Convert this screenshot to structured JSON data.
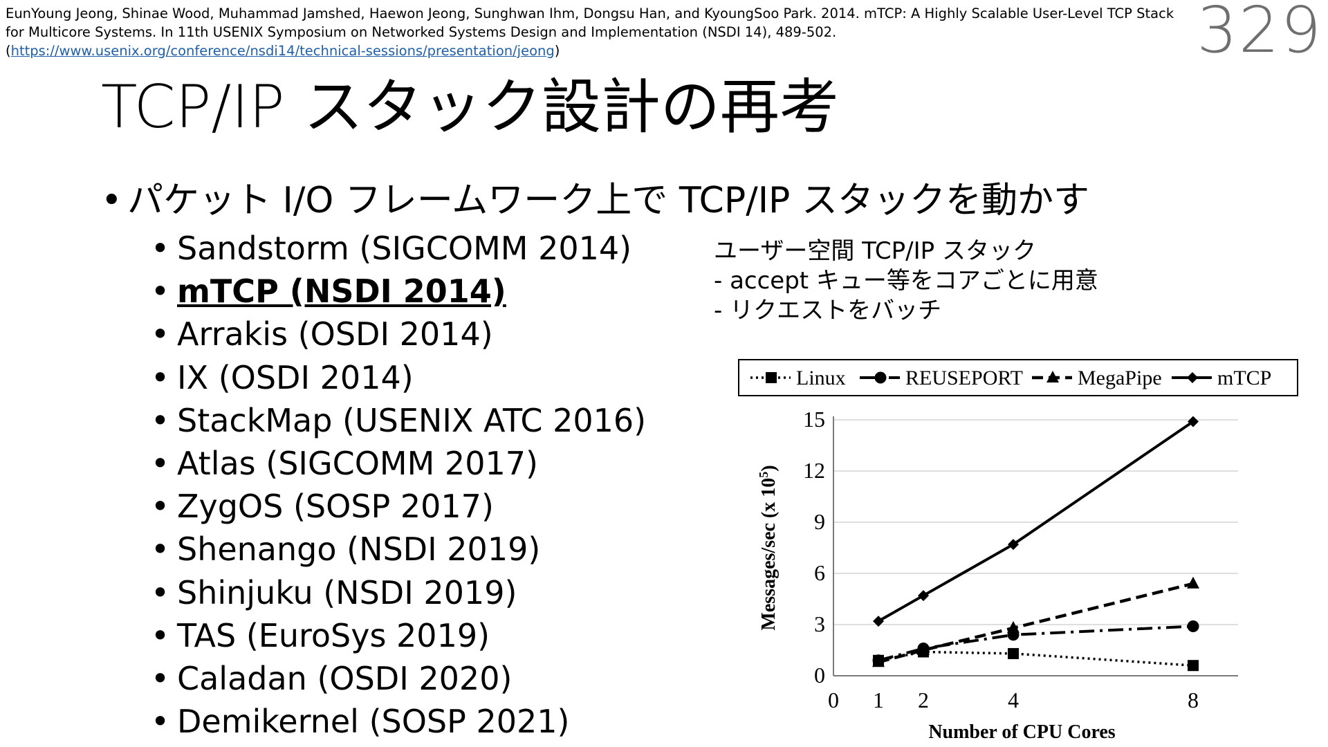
{
  "citation": {
    "text": "EunYoung Jeong, Shinae Wood, Muhammad Jamshed, Haewon Jeong, Sunghwan Ihm, Dongsu Han, and KyoungSoo Park. 2014. mTCP: A Highly Scalable User-Level TCP Stack for Multicore Systems. In 11th USENIX Symposium on Networked Systems Design and Implementation (NSDI 14), 489-502.(",
    "link": "https://www.usenix.org/conference/nsdi14/technical-sessions/presentation/jeong",
    "suffix": ")"
  },
  "page_number": "329",
  "title": "TCP/IP スタック設計の再考",
  "bullet_main": "パケット I/O フレームワーク上で TCP/IP スタックを動かす",
  "sub_items": [
    "Sandstorm (SIGCOMM 2014)",
    "mTCP (NSDI 2014)",
    "Arrakis (OSDI 2014)",
    "IX (OSDI 2014)",
    "StackMap (USENIX ATC 2016)",
    "Atlas (SIGCOMM 2017)",
    "ZygOS (SOSP 2017)",
    "Shenango (NSDI 2019)",
    "Shinjuku (NSDI 2019)",
    "TAS (EuroSys 2019)",
    "Caladan (OSDI 2020)",
    "Demikernel (SOSP 2021)"
  ],
  "note": {
    "line1": "ユーザー空間 TCP/IP スタック",
    "line2": "- accept キュー等をコアごとに用意",
    "line3": "- リクエストをバッチ"
  },
  "chart_data": {
    "type": "line",
    "x": [
      1,
      2,
      4,
      8
    ],
    "series": [
      {
        "name": "Linux",
        "values": [
          0.9,
          1.4,
          1.3,
          0.6
        ],
        "marker": "square",
        "dash": "dotted"
      },
      {
        "name": "REUSEPORT",
        "values": [
          0.9,
          1.6,
          2.4,
          2.9
        ],
        "marker": "circle",
        "dash": "dashdot"
      },
      {
        "name": "MegaPipe",
        "values": [
          0.8,
          1.5,
          2.8,
          5.4
        ],
        "marker": "triangle",
        "dash": "dashed"
      },
      {
        "name": "mTCP",
        "values": [
          3.2,
          4.7,
          7.7,
          14.9
        ],
        "marker": "diamond",
        "dash": "solid"
      }
    ],
    "xlabel": "Number of CPU Cores",
    "ylabel": "Messages/sec (x 10",
    "ylabel_sup": "5",
    "ylabel_end": ")",
    "x_ticks": [
      "0",
      "1",
      "2",
      "4",
      "8"
    ],
    "y_ticks": [
      "0",
      "3",
      "6",
      "9",
      "12",
      "15"
    ],
    "xlim": [
      0,
      9
    ],
    "ylim": [
      0,
      15
    ],
    "grid": true,
    "legend": "top"
  }
}
